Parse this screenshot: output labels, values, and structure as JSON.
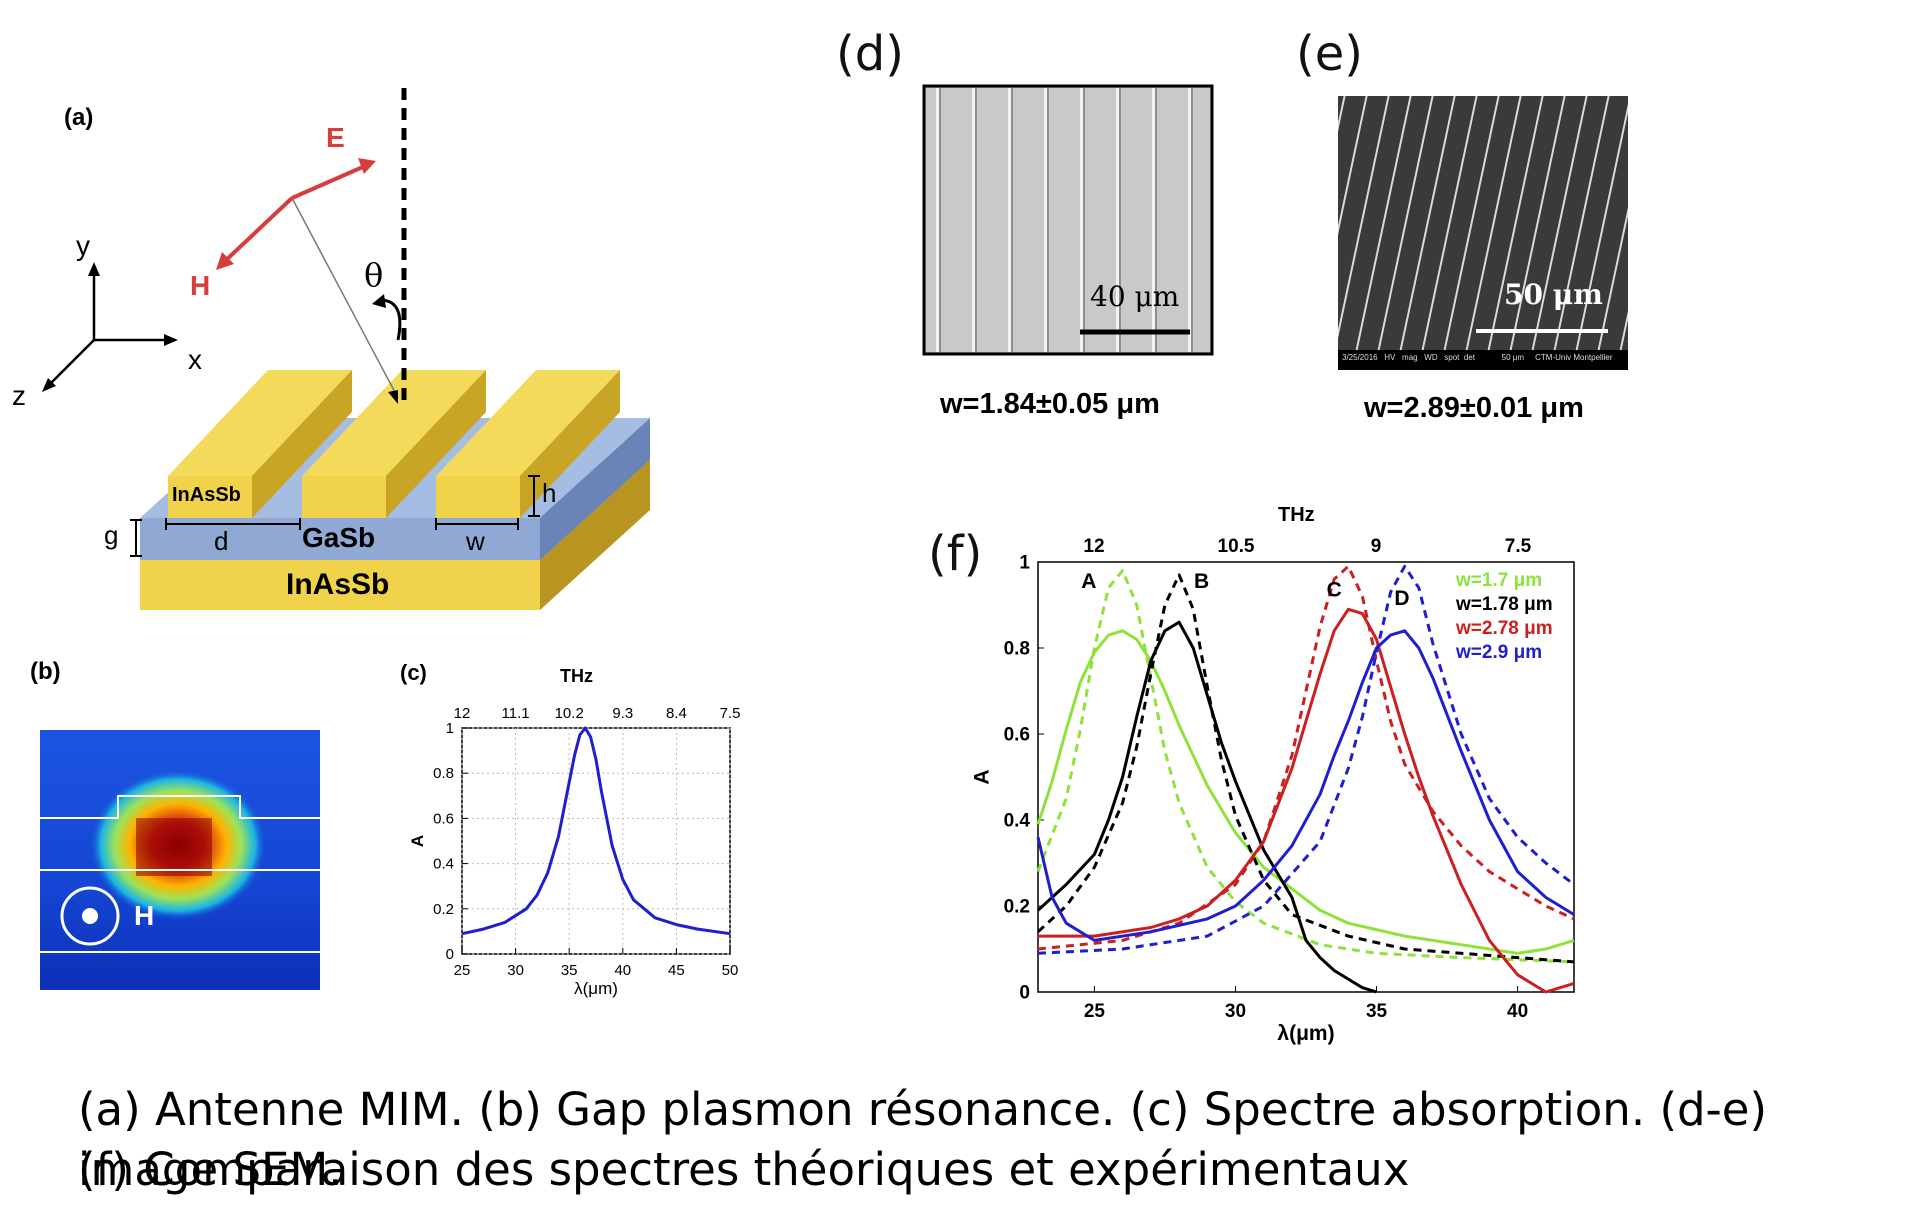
{
  "panel_a": {
    "label": "(a)",
    "e_label": "E",
    "h_label": "H",
    "theta": "θ",
    "axis_y": "y",
    "axis_x": "x",
    "axis_z": "z",
    "layer_top": "InAsSb",
    "layer_mid": "GaSb",
    "layer_bottom": "InAsSb",
    "dim_d": "d",
    "dim_w": "w",
    "dim_g": "g",
    "dim_h": "h",
    "colors": {
      "gold": "#f0d34a",
      "blue": "#8fa8d4",
      "red": "#d83c3c"
    }
  },
  "panel_b": {
    "label": "(b)",
    "h_label": "H"
  },
  "panel_c": {
    "label": "(c)",
    "top_axis_title": "THz"
  },
  "panel_d": {
    "label": "(d)",
    "scale": "40 μm",
    "width_text": "w=1.84±0.05 μm"
  },
  "panel_e": {
    "label": "(e)",
    "scale": "50 μm",
    "width_text": "w=2.89±0.01 μm",
    "sem_bar": "3/25/2016   HV   mag   WD   spot  det            50 μm     CTM-Univ Montpellier"
  },
  "panel_f": {
    "label": "(f)",
    "top_axis_title": "THz"
  },
  "caption": {
    "line1": "(a) Antenne MIM. (b) Gap plasmon résonance. (c) Spectre absorption. (d-e) image SEM.",
    "line2": "(f) Comparaison des spectres théoriques et expérimentaux"
  },
  "chart_data": [
    {
      "type": "line",
      "panel": "c",
      "xlabel": "λ(μm)",
      "ylabel": "A",
      "xlim": [
        25,
        50
      ],
      "ylim": [
        0,
        1
      ],
      "xticks": [
        25,
        30,
        35,
        40,
        45,
        50
      ],
      "yticks": [
        0,
        0.2,
        0.4,
        0.6,
        0.8,
        1
      ],
      "top_ticks": [
        "12",
        "11.1",
        "10.2",
        "9.3",
        "8.4",
        "7.5"
      ],
      "series": [
        {
          "color": "#1f1fd0",
          "x": [
            25,
            27,
            29,
            31,
            32,
            33,
            34,
            35,
            35.5,
            36,
            36.5,
            37,
            37.5,
            38,
            39,
            40,
            41,
            43,
            45,
            47,
            50
          ],
          "y": [
            0.09,
            0.11,
            0.14,
            0.2,
            0.26,
            0.36,
            0.52,
            0.76,
            0.88,
            0.97,
            1.0,
            0.96,
            0.86,
            0.72,
            0.48,
            0.33,
            0.24,
            0.16,
            0.13,
            0.11,
            0.09
          ]
        }
      ]
    },
    {
      "type": "line",
      "panel": "f",
      "xlabel": "λ(μm)",
      "ylabel": "A",
      "xlim": [
        23,
        42
      ],
      "ylim": [
        0,
        1
      ],
      "xticks": [
        25,
        30,
        35,
        40
      ],
      "yticks": [
        0,
        0.2,
        0.4,
        0.6,
        0.8,
        1
      ],
      "top_ticks": [
        "12",
        "10.5",
        "9",
        "7.5"
      ],
      "peak_labels": [
        {
          "text": "A",
          "x": 24.8,
          "y": 0.94
        },
        {
          "text": "B",
          "x": 28.8,
          "y": 0.94
        },
        {
          "text": "C",
          "x": 33.5,
          "y": 0.92
        },
        {
          "text": "D",
          "x": 35.9,
          "y": 0.9
        }
      ],
      "legend": [
        {
          "text": "w=1.7 μm",
          "color": "#8de33a"
        },
        {
          "text": "w=1.78 μm",
          "color": "#000000"
        },
        {
          "text": "w=2.78 μm",
          "color": "#cc1f1f"
        },
        {
          "text": "w=2.9 μm",
          "color": "#1f1fd0"
        }
      ],
      "series": [
        {
          "name": "w=1.7 μm",
          "color": "#8de33a",
          "dash": false,
          "x": [
            23,
            23.5,
            24,
            24.5,
            25,
            25.5,
            26,
            26.5,
            27,
            27.5,
            28,
            29,
            30,
            31,
            32,
            33,
            34,
            36,
            38,
            40,
            41,
            42
          ],
          "y": [
            0.39,
            0.49,
            0.61,
            0.72,
            0.79,
            0.83,
            0.84,
            0.82,
            0.77,
            0.7,
            0.62,
            0.48,
            0.37,
            0.29,
            0.24,
            0.19,
            0.16,
            0.13,
            0.11,
            0.09,
            0.1,
            0.12
          ]
        },
        {
          "name": "w=1.7 μm",
          "color": "#8de33a",
          "dash": true,
          "x": [
            23,
            24,
            24.5,
            25,
            25.5,
            26,
            26.5,
            27,
            27.5,
            28,
            29,
            30,
            31,
            33,
            35,
            38,
            42
          ],
          "y": [
            0.28,
            0.45,
            0.61,
            0.8,
            0.94,
            0.98,
            0.9,
            0.73,
            0.56,
            0.44,
            0.29,
            0.21,
            0.16,
            0.11,
            0.09,
            0.08,
            0.07
          ]
        },
        {
          "name": "w=1.78 μm",
          "color": "#000000",
          "dash": false,
          "x": [
            23,
            24,
            25,
            25.5,
            26,
            26.5,
            27,
            27.5,
            28,
            28.5,
            29,
            29.5,
            30,
            30.5,
            31,
            32,
            32.5,
            33,
            33.5,
            34,
            34.5,
            35
          ],
          "y": [
            0.19,
            0.25,
            0.32,
            0.4,
            0.5,
            0.64,
            0.77,
            0.84,
            0.86,
            0.8,
            0.69,
            0.58,
            0.49,
            0.41,
            0.33,
            0.22,
            0.12,
            0.08,
            0.05,
            0.03,
            0.01,
            0.0
          ]
        },
        {
          "name": "w=1.78 μm",
          "color": "#000000",
          "dash": true,
          "x": [
            23,
            24,
            25,
            26,
            26.5,
            27,
            27.5,
            28,
            28.5,
            29,
            29.5,
            30,
            31,
            32,
            34,
            36,
            38,
            40,
            42
          ],
          "y": [
            0.14,
            0.2,
            0.29,
            0.44,
            0.57,
            0.74,
            0.9,
            0.97,
            0.89,
            0.71,
            0.54,
            0.41,
            0.26,
            0.18,
            0.13,
            0.1,
            0.09,
            0.08,
            0.07
          ]
        },
        {
          "name": "w=2.78 μm",
          "color": "#cc1f1f",
          "dash": false,
          "x": [
            23,
            25,
            27,
            28,
            29,
            30,
            31,
            32,
            32.5,
            33,
            33.5,
            34,
            34.5,
            35,
            35.5,
            36,
            36.5,
            37,
            38,
            39,
            40,
            41,
            42
          ],
          "y": [
            0.13,
            0.13,
            0.15,
            0.17,
            0.2,
            0.26,
            0.35,
            0.52,
            0.63,
            0.74,
            0.84,
            0.89,
            0.88,
            0.82,
            0.71,
            0.6,
            0.5,
            0.41,
            0.25,
            0.12,
            0.04,
            0.0,
            0.02
          ]
        },
        {
          "name": "w=2.78 μm",
          "color": "#cc1f1f",
          "dash": true,
          "x": [
            23,
            26,
            28,
            30,
            31,
            32,
            32.5,
            33,
            33.5,
            34,
            34.5,
            35,
            35.5,
            36,
            37,
            38,
            39,
            40,
            41,
            42
          ],
          "y": [
            0.1,
            0.12,
            0.16,
            0.25,
            0.35,
            0.55,
            0.7,
            0.85,
            0.96,
            0.99,
            0.92,
            0.77,
            0.63,
            0.53,
            0.42,
            0.34,
            0.28,
            0.24,
            0.2,
            0.17
          ]
        },
        {
          "name": "w=2.9 μm",
          "color": "#1f1fd0",
          "dash": false,
          "x": [
            23,
            23.5,
            24,
            25,
            27,
            29,
            30,
            31,
            32,
            33,
            33.5,
            34,
            34.5,
            35,
            35.5,
            36,
            36.5,
            37,
            38,
            39,
            40,
            41,
            42
          ],
          "y": [
            0.36,
            0.22,
            0.16,
            0.12,
            0.14,
            0.17,
            0.2,
            0.26,
            0.34,
            0.46,
            0.55,
            0.63,
            0.72,
            0.8,
            0.83,
            0.84,
            0.8,
            0.73,
            0.56,
            0.4,
            0.28,
            0.22,
            0.18
          ]
        },
        {
          "name": "w=2.9 μm",
          "color": "#1f1fd0",
          "dash": true,
          "x": [
            23,
            26,
            29,
            31,
            33,
            34,
            34.5,
            35,
            35.5,
            36,
            36.5,
            37,
            38,
            39,
            40,
            41,
            42
          ],
          "y": [
            0.09,
            0.1,
            0.13,
            0.2,
            0.35,
            0.52,
            0.64,
            0.79,
            0.93,
            0.99,
            0.94,
            0.81,
            0.6,
            0.45,
            0.36,
            0.3,
            0.25
          ]
        }
      ]
    }
  ]
}
